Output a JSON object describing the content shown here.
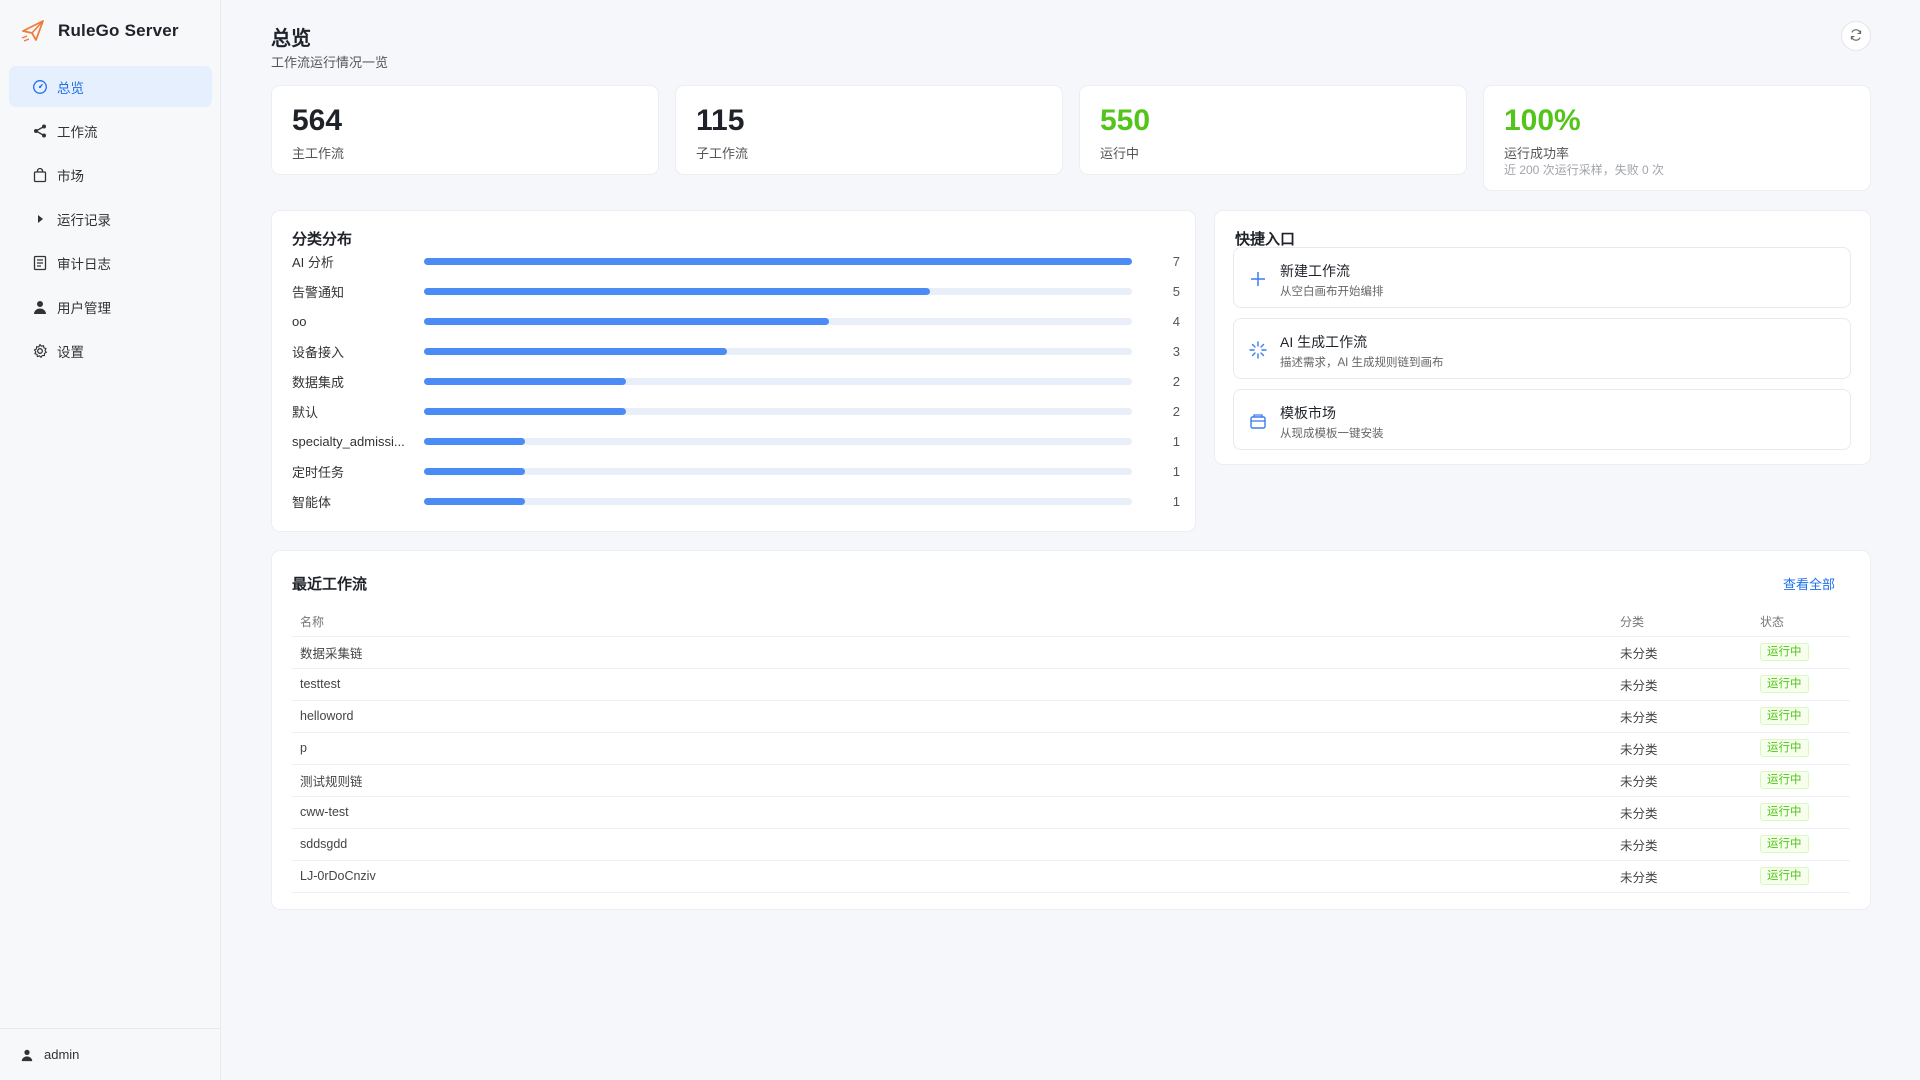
{
  "brand": {
    "name": "RuleGo Server",
    "accent": "#f07b3a"
  },
  "sidebar": {
    "items": [
      {
        "label": "总览",
        "icon": "dashboard-icon",
        "active": true
      },
      {
        "label": "工作流",
        "icon": "share-icon",
        "active": false
      },
      {
        "label": "市场",
        "icon": "shopping-bag-icon",
        "active": false
      },
      {
        "label": "运行记录",
        "icon": "caret-right-icon",
        "active": false
      },
      {
        "label": "审计日志",
        "icon": "document-icon",
        "active": false
      },
      {
        "label": "用户管理",
        "icon": "user-icon",
        "active": false
      },
      {
        "label": "设置",
        "icon": "gear-icon",
        "active": false
      }
    ],
    "user": "admin"
  },
  "header": {
    "title": "总览",
    "subtitle": "工作流运行情况一览"
  },
  "stats": [
    {
      "value": "564",
      "label": "主工作流",
      "color": "#1f2329"
    },
    {
      "value": "115",
      "label": "子工作流",
      "color": "#1f2329"
    },
    {
      "value": "550",
      "label": "运行中",
      "color": "#52c41a"
    },
    {
      "value": "100%",
      "label": "运行成功率",
      "note": "近 200 次运行采样，失败 0 次",
      "color": "#52c41a"
    }
  ],
  "categories": {
    "title": "分类分布",
    "max": 7,
    "items": [
      {
        "name": "AI 分析",
        "count": 7
      },
      {
        "name": "告警通知",
        "count": 5
      },
      {
        "name": "oo",
        "count": 4
      },
      {
        "name": "设备接入",
        "count": 3
      },
      {
        "name": "数据集成",
        "count": 2
      },
      {
        "name": "默认",
        "count": 2
      },
      {
        "name": "specialty_admissi...",
        "count": 1
      },
      {
        "name": "定时任务",
        "count": 1
      },
      {
        "name": "智能体",
        "count": 1
      }
    ]
  },
  "quick": {
    "title": "快捷入口",
    "items": [
      {
        "title": "新建工作流",
        "desc": "从空白画布开始编排",
        "icon": "plus-icon"
      },
      {
        "title": "AI 生成工作流",
        "desc": "描述需求，AI 生成规则链到画布",
        "icon": "sparkle-icon"
      },
      {
        "title": "模板市场",
        "desc": "从现成模板一键安装",
        "icon": "package-icon"
      }
    ]
  },
  "recent": {
    "title": "最近工作流",
    "view_all": "查看全部",
    "columns": {
      "name": "名称",
      "category": "分类",
      "status": "状态"
    },
    "rows": [
      {
        "name": "数据采集链",
        "category": "未分类",
        "status": "运行中"
      },
      {
        "name": "testtest",
        "category": "未分类",
        "status": "运行中"
      },
      {
        "name": "helloword",
        "category": "未分类",
        "status": "运行中"
      },
      {
        "name": "p",
        "category": "未分类",
        "status": "运行中"
      },
      {
        "name": "测试规则链",
        "category": "未分类",
        "status": "运行中"
      },
      {
        "name": "cww-test",
        "category": "未分类",
        "status": "运行中"
      },
      {
        "name": "sddsgdd",
        "category": "未分类",
        "status": "运行中"
      },
      {
        "name": "LJ-0rDoCnziv",
        "category": "未分类",
        "status": "运行中"
      }
    ]
  }
}
